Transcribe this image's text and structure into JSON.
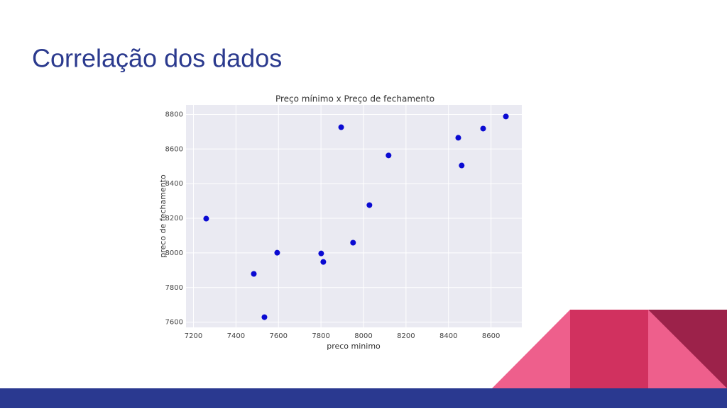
{
  "slide": {
    "title": "Correlação dos dados"
  },
  "chart_data": {
    "type": "scatter",
    "title": "Preço mínimo x Preço de fechamento",
    "x_label": "preco minimo",
    "y_label": "preco de fechamento",
    "series": [
      {
        "color": "#0a0ad2",
        "x": [
          7260,
          7484,
          7534,
          7594,
          7801,
          7811,
          7895,
          7951,
          8028,
          8118,
          8446,
          8462,
          8563,
          8670
        ],
        "values": [
          8198,
          7879,
          7629,
          8001,
          7997,
          7948,
          8726,
          8059,
          8276,
          8563,
          8665,
          8505,
          8718,
          8788
        ]
      }
    ],
    "xlim": [
      7165,
      8745
    ],
    "ylim": [
      7570,
      8855
    ],
    "xticks": [
      7200,
      7400,
      7600,
      7800,
      8000,
      8200,
      8400,
      8600
    ],
    "yticks": [
      7600,
      7800,
      8000,
      8200,
      8400,
      8600,
      8800
    ],
    "grid": true
  }
}
